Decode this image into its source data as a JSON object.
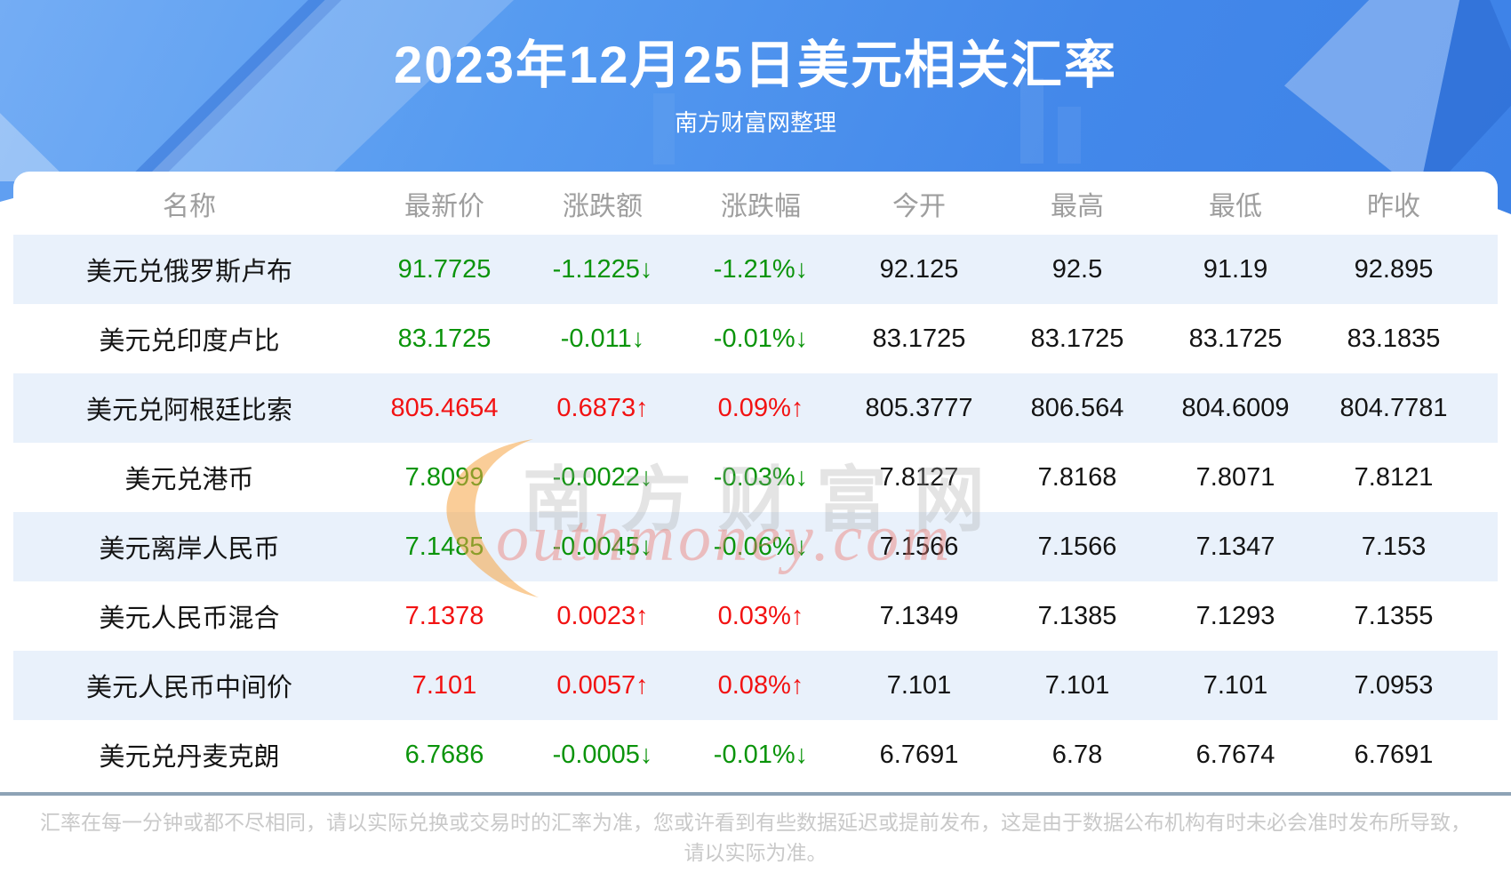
{
  "header": {
    "title": "2023年12月25日美元相关汇率",
    "subtitle": "南方财富网整理"
  },
  "table": {
    "columns": [
      "名称",
      "最新价",
      "涨跌额",
      "涨跌幅",
      "今开",
      "最高",
      "最低",
      "昨收"
    ],
    "rows": [
      {
        "name": "美元兑俄罗斯卢布",
        "latest": "91.7725",
        "change": "-1.1225↓",
        "pct": "-1.21%↓",
        "open": "92.125",
        "high": "92.5",
        "low": "91.19",
        "prev": "92.895",
        "trend": "down"
      },
      {
        "name": "美元兑印度卢比",
        "latest": "83.1725",
        "change": "-0.011↓",
        "pct": "-0.01%↓",
        "open": "83.1725",
        "high": "83.1725",
        "low": "83.1725",
        "prev": "83.1835",
        "trend": "down"
      },
      {
        "name": "美元兑阿根廷比索",
        "latest": "805.4654",
        "change": "0.6873↑",
        "pct": "0.09%↑",
        "open": "805.3777",
        "high": "806.564",
        "low": "804.6009",
        "prev": "804.7781",
        "trend": "up"
      },
      {
        "name": "美元兑港币",
        "latest": "7.8099",
        "change": "-0.0022↓",
        "pct": "-0.03%↓",
        "open": "7.8127",
        "high": "7.8168",
        "low": "7.8071",
        "prev": "7.8121",
        "trend": "down"
      },
      {
        "name": "美元离岸人民币",
        "latest": "7.1485",
        "change": "-0.0045↓",
        "pct": "-0.06%↓",
        "open": "7.1566",
        "high": "7.1566",
        "low": "7.1347",
        "prev": "7.153",
        "trend": "down"
      },
      {
        "name": "美元人民币混合",
        "latest": "7.1378",
        "change": "0.0023↑",
        "pct": "0.03%↑",
        "open": "7.1349",
        "high": "7.1385",
        "low": "7.1293",
        "prev": "7.1355",
        "trend": "up"
      },
      {
        "name": "美元人民币中间价",
        "latest": "7.101",
        "change": "0.0057↑",
        "pct": "0.08%↑",
        "open": "7.101",
        "high": "7.101",
        "low": "7.101",
        "prev": "7.0953",
        "trend": "up"
      },
      {
        "name": "美元兑丹麦克朗",
        "latest": "6.7686",
        "change": "-0.0005↓",
        "pct": "-0.01%↓",
        "open": "6.7691",
        "high": "6.78",
        "low": "6.7674",
        "prev": "6.7691",
        "trend": "down"
      }
    ]
  },
  "watermark": {
    "cn": "南方财富网",
    "en": "outhmoney.com"
  },
  "footer": {
    "line1": "汇率在每一分钟或都不尽相同，请以实际兑换或交易时的汇率为准，您或许看到有些数据延迟或提前发布，这是由于数据公布机构有时未必会准时发布所导致，",
    "line2": "请以实际为准。"
  },
  "colors": {
    "up_red": "#f21212",
    "down_green": "#0b940b",
    "stripe_blue": "#e9f1fb",
    "banner_blue": "#4388ea",
    "divider_gray": "#8ea3b6"
  }
}
